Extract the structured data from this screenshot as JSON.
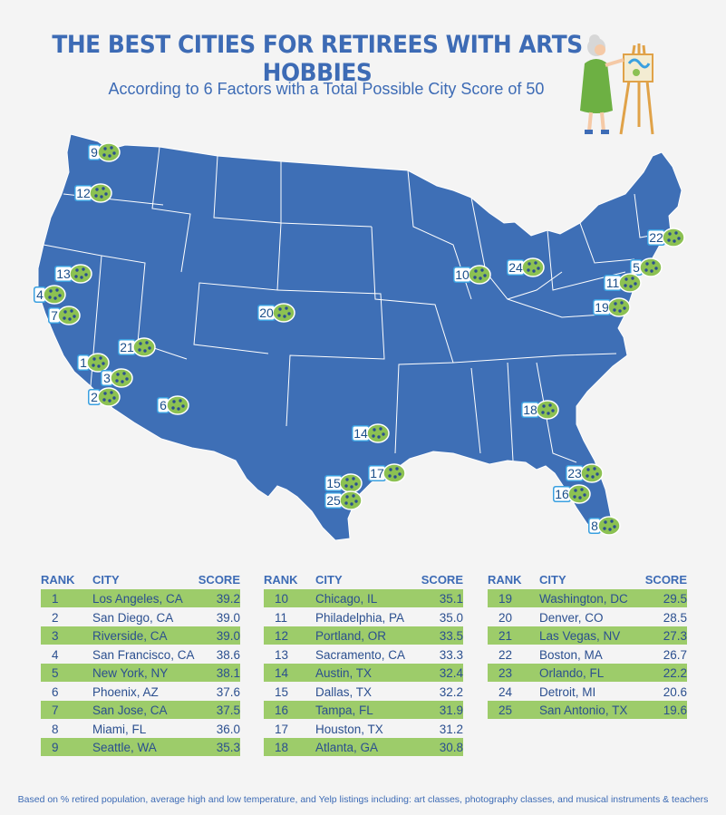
{
  "title": "THE BEST CITIES FOR RETIREES WITH ARTS HOBBIES",
  "subtitle": "According to 6 Factors with a Total Possible City Score of 50",
  "table_headers": {
    "rank": "RANK",
    "city": "CITY",
    "score": "SCORE"
  },
  "rankings": [
    {
      "rank": "1",
      "city": "Los Angeles, CA",
      "score": "39.2"
    },
    {
      "rank": "2",
      "city": "San Diego, CA",
      "score": "39.0"
    },
    {
      "rank": "3",
      "city": "Riverside, CA",
      "score": "39.0"
    },
    {
      "rank": "4",
      "city": "San Francisco, CA",
      "score": "38.6"
    },
    {
      "rank": "5",
      "city": "New York, NY",
      "score": "38.1"
    },
    {
      "rank": "6",
      "city": "Phoenix, AZ",
      "score": "37.6"
    },
    {
      "rank": "7",
      "city": "San Jose, CA",
      "score": "37.5"
    },
    {
      "rank": "8",
      "city": "Miami, FL",
      "score": "36.0"
    },
    {
      "rank": "9",
      "city": "Seattle, WA",
      "score": "35.3"
    },
    {
      "rank": "10",
      "city": "Chicago, IL",
      "score": "35.1"
    },
    {
      "rank": "11",
      "city": "Philadelphia, PA",
      "score": "35.0"
    },
    {
      "rank": "12",
      "city": "Portland, OR",
      "score": "33.5"
    },
    {
      "rank": "13",
      "city": "Sacramento, CA",
      "score": "33.3"
    },
    {
      "rank": "14",
      "city": "Austin, TX",
      "score": "32.4"
    },
    {
      "rank": "15",
      "city": "Dallas, TX",
      "score": "32.2"
    },
    {
      "rank": "16",
      "city": "Tampa, FL",
      "score": "31.9"
    },
    {
      "rank": "17",
      "city": "Houston, TX",
      "score": "31.2"
    },
    {
      "rank": "18",
      "city": "Atlanta, GA",
      "score": "30.8"
    },
    {
      "rank": "19",
      "city": "Washington, DC",
      "score": "29.5"
    },
    {
      "rank": "20",
      "city": "Denver, CO",
      "score": "28.5"
    },
    {
      "rank": "21",
      "city": "Las Vegas, NV",
      "score": "27.3"
    },
    {
      "rank": "22",
      "city": "Boston, MA",
      "score": "26.7"
    },
    {
      "rank": "23",
      "city": "Orlando, FL",
      "score": "22.2"
    },
    {
      "rank": "24",
      "city": "Detroit, MI",
      "score": "20.6"
    },
    {
      "rank": "25",
      "city": "San Antonio, TX",
      "score": "19.6"
    }
  ],
  "footnote": "Based on % retired population, average high and low temperature, and Yelp listings including: art classes, photography classes, and musical instruments & teachers",
  "colors": {
    "map_fill": "#3e6fb6",
    "title": "#3d6bb5",
    "row_shade": "#9dcc6a",
    "marker_tag": "#3aa0e0",
    "palette": "#8cc152"
  }
}
